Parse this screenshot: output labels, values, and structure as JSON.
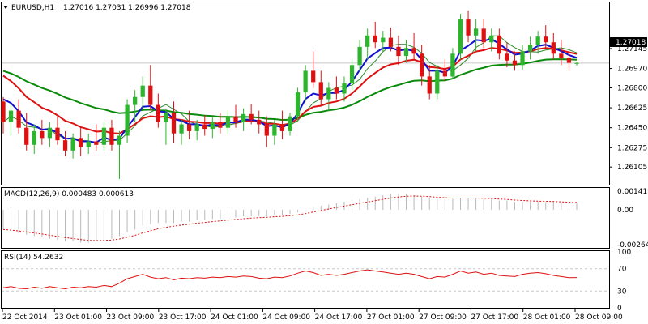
{
  "header": {
    "symbol": "EURUSD,H1",
    "ohlc": "1.27016 1.27031 1.26996 1.27018"
  },
  "price_panel": {
    "current_price_tag": "1.27018",
    "y_ticks": [
      "1.27145",
      "1.26970",
      "1.26800",
      "1.26625",
      "1.26450",
      "1.26275",
      "1.26105"
    ]
  },
  "macd_panel": {
    "title": "MACD(12,26,9) 0.000483 0.000613",
    "y_ticks": [
      "0.001413",
      "0.00",
      "-0.002645"
    ]
  },
  "rsi_panel": {
    "title": "RSI(14) 54.2632",
    "y_ticks": [
      "100",
      "70",
      "30",
      "0"
    ]
  },
  "x_axis": {
    "labels": [
      "22 Oct 2014",
      "23 Oct 01:00",
      "23 Oct 09:00",
      "23 Oct 17:00",
      "24 Oct 01:00",
      "24 Oct 09:00",
      "24 Oct 17:00",
      "27 Oct 01:00",
      "27 Oct 09:00",
      "27 Oct 17:00",
      "28 Oct 01:00",
      "28 Oct 09:00"
    ]
  },
  "colors": {
    "bull": "#2db52d",
    "bear": "#dd1111",
    "ma_fast": "#1010d0",
    "ma_mid": "#dd1111",
    "ma_slow": "#0a8a0a",
    "bb": "#2d8a2d",
    "grid": "#c8c8c8",
    "tag_bg": "#000000"
  },
  "chart_data": [
    {
      "type": "candlestick",
      "series": [
        {
          "name": "EURUSD,H1",
          "ohlc": [
            [
              1.2668,
              1.2672,
              1.264,
              1.265
            ],
            [
              1.265,
              1.2665,
              1.2638,
              1.266
            ],
            [
              1.266,
              1.267,
              1.264,
              1.2645
            ],
            [
              1.2645,
              1.2658,
              1.2625,
              1.263
            ],
            [
              1.263,
              1.2648,
              1.2622,
              1.2642
            ],
            [
              1.2642,
              1.2652,
              1.263,
              1.2636
            ],
            [
              1.2636,
              1.265,
              1.2628,
              1.2645
            ],
            [
              1.2645,
              1.2655,
              1.263,
              1.2634
            ],
            [
              1.2634,
              1.2642,
              1.262,
              1.2625
            ],
            [
              1.2625,
              1.264,
              1.2618,
              1.2636
            ],
            [
              1.2636,
              1.2645,
              1.262,
              1.2628
            ],
            [
              1.2628,
              1.264,
              1.2622,
              1.2633
            ],
            [
              1.2633,
              1.2648,
              1.2625,
              1.263
            ],
            [
              1.263,
              1.265,
              1.2625,
              1.2645
            ],
            [
              1.2645,
              1.2652,
              1.2625,
              1.263
            ],
            [
              1.263,
              1.2642,
              1.26,
              1.2638
            ],
            [
              1.2638,
              1.267,
              1.2632,
              1.2665
            ],
            [
              1.2665,
              1.2678,
              1.265,
              1.2672
            ],
            [
              1.2672,
              1.269,
              1.2662,
              1.2682
            ],
            [
              1.2682,
              1.27,
              1.266,
              1.2665
            ],
            [
              1.2665,
              1.2675,
              1.2645,
              1.265
            ],
            [
              1.265,
              1.2662,
              1.263,
              1.2658
            ],
            [
              1.2658,
              1.2668,
              1.2632,
              1.264
            ],
            [
              1.264,
              1.2652,
              1.263,
              1.2648
            ],
            [
              1.2648,
              1.266,
              1.2635,
              1.2642
            ],
            [
              1.2642,
              1.2652,
              1.2634,
              1.2648
            ],
            [
              1.2648,
              1.2656,
              1.2638,
              1.2644
            ],
            [
              1.2644,
              1.2654,
              1.2636,
              1.265
            ],
            [
              1.265,
              1.2658,
              1.264,
              1.2645
            ],
            [
              1.2645,
              1.266,
              1.264,
              1.2655
            ],
            [
              1.2655,
              1.2665,
              1.2645,
              1.265
            ],
            [
              1.265,
              1.2662,
              1.2642,
              1.2657
            ],
            [
              1.2657,
              1.2666,
              1.2648,
              1.2652
            ],
            [
              1.2652,
              1.266,
              1.264,
              1.2648
            ],
            [
              1.2648,
              1.2655,
              1.2628,
              1.2638
            ],
            [
              1.2638,
              1.2652,
              1.263,
              1.2648
            ],
            [
              1.2648,
              1.266,
              1.2635,
              1.2642
            ],
            [
              1.2642,
              1.2658,
              1.2638,
              1.2655
            ],
            [
              1.2655,
              1.268,
              1.265,
              1.2676
            ],
            [
              1.2676,
              1.27,
              1.2668,
              1.2695
            ],
            [
              1.2695,
              1.2712,
              1.268,
              1.2685
            ],
            [
              1.2685,
              1.2695,
              1.2664,
              1.267
            ],
            [
              1.267,
              1.2685,
              1.266,
              1.268
            ],
            [
              1.268,
              1.269,
              1.267,
              1.2675
            ],
            [
              1.2675,
              1.269,
              1.2668,
              1.2684
            ],
            [
              1.2684,
              1.2705,
              1.2678,
              1.27
            ],
            [
              1.27,
              1.2722,
              1.2694,
              1.2716
            ],
            [
              1.2716,
              1.2732,
              1.2705,
              1.2726
            ],
            [
              1.2726,
              1.2738,
              1.2715,
              1.272
            ],
            [
              1.272,
              1.273,
              1.2712,
              1.2724
            ],
            [
              1.2724,
              1.2733,
              1.2712,
              1.2716
            ],
            [
              1.2716,
              1.2726,
              1.27,
              1.2708
            ],
            [
              1.2708,
              1.2722,
              1.2702,
              1.2715
            ],
            [
              1.2715,
              1.2728,
              1.2705,
              1.271
            ],
            [
              1.271,
              1.2718,
              1.2682,
              1.269
            ],
            [
              1.269,
              1.27,
              1.267,
              1.2675
            ],
            [
              1.2675,
              1.27,
              1.267,
              1.2695
            ],
            [
              1.2695,
              1.2705,
              1.2686,
              1.269
            ],
            [
              1.269,
              1.2715,
              1.2688,
              1.271
            ],
            [
              1.271,
              1.2745,
              1.2705,
              1.274
            ],
            [
              1.274,
              1.2748,
              1.272,
              1.2726
            ],
            [
              1.2726,
              1.274,
              1.2712,
              1.2732
            ],
            [
              1.2732,
              1.274,
              1.2715,
              1.272
            ],
            [
              1.272,
              1.2732,
              1.2712,
              1.2726
            ],
            [
              1.2726,
              1.2732,
              1.2705,
              1.271
            ],
            [
              1.271,
              1.272,
              1.2698,
              1.2704
            ],
            [
              1.2704,
              1.2712,
              1.2695,
              1.27
            ],
            [
              1.27,
              1.2718,
              1.2696,
              1.2712
            ],
            [
              1.2712,
              1.2725,
              1.2705,
              1.2718
            ],
            [
              1.2718,
              1.273,
              1.271,
              1.2725
            ],
            [
              1.2725,
              1.2735,
              1.2714,
              1.272
            ],
            [
              1.272,
              1.2728,
              1.2705,
              1.271
            ],
            [
              1.271,
              1.2722,
              1.27,
              1.2706
            ],
            [
              1.2706,
              1.2712,
              1.2695,
              1.2702
            ],
            [
              1.27016,
              1.27031,
              1.26996,
              1.27018
            ]
          ]
        }
      ],
      "title": "EURUSD,H1",
      "ylim": [
        1.2595,
        1.2755
      ]
    },
    {
      "type": "bar",
      "title": "MACD(12,26,9) 0.000483 0.000613",
      "series": [
        {
          "name": "MACD",
          "values": [
            -0.0015,
            -0.0017,
            -0.0018,
            -0.0019,
            -0.002,
            -0.0021,
            -0.0022,
            -0.0023,
            -0.0024,
            -0.0024,
            -0.0025,
            -0.0025,
            -0.0024,
            -0.0023,
            -0.0022,
            -0.002,
            -0.0017,
            -0.0015,
            -0.0012,
            -0.0011,
            -0.001,
            -0.001,
            -0.001,
            -0.0009,
            -0.0009,
            -0.0008,
            -0.0008,
            -0.0007,
            -0.0007,
            -0.0006,
            -0.0006,
            -0.0005,
            -0.0005,
            -0.0005,
            -0.0005,
            -0.0004,
            -0.0004,
            -0.0003,
            -0.0002,
            0.0,
            0.0002,
            0.0003,
            0.0004,
            0.0005,
            0.0006,
            0.0007,
            0.0008,
            0.0009,
            0.001,
            0.0011,
            0.0012,
            0.0012,
            0.0012,
            0.0011,
            0.001,
            0.0009,
            0.0008,
            0.0008,
            0.0008,
            0.0009,
            0.0009,
            0.0009,
            0.0008,
            0.0008,
            0.0007,
            0.0007,
            0.0006,
            0.0006,
            0.0006,
            0.0006,
            0.0006,
            0.0006,
            0.0005,
            0.0005,
            0.0005
          ]
        }
      ],
      "ylim": [
        -0.0029,
        0.0016
      ]
    },
    {
      "type": "line",
      "title": "RSI(14) 54.2632",
      "series": [
        {
          "name": "RSI(14)",
          "values": [
            36,
            38,
            35,
            34,
            37,
            35,
            38,
            36,
            34,
            37,
            36,
            38,
            37,
            40,
            38,
            44,
            52,
            56,
            60,
            55,
            52,
            54,
            50,
            53,
            52,
            54,
            53,
            55,
            54,
            56,
            55,
            57,
            56,
            53,
            52,
            55,
            54,
            57,
            62,
            66,
            63,
            58,
            60,
            58,
            60,
            63,
            66,
            68,
            66,
            64,
            62,
            60,
            62,
            60,
            56,
            52,
            56,
            55,
            60,
            66,
            62,
            64,
            60,
            62,
            58,
            57,
            56,
            60,
            62,
            63,
            61,
            58,
            56,
            54,
            54.26
          ]
        }
      ],
      "ylim": [
        0,
        100
      ]
    }
  ]
}
